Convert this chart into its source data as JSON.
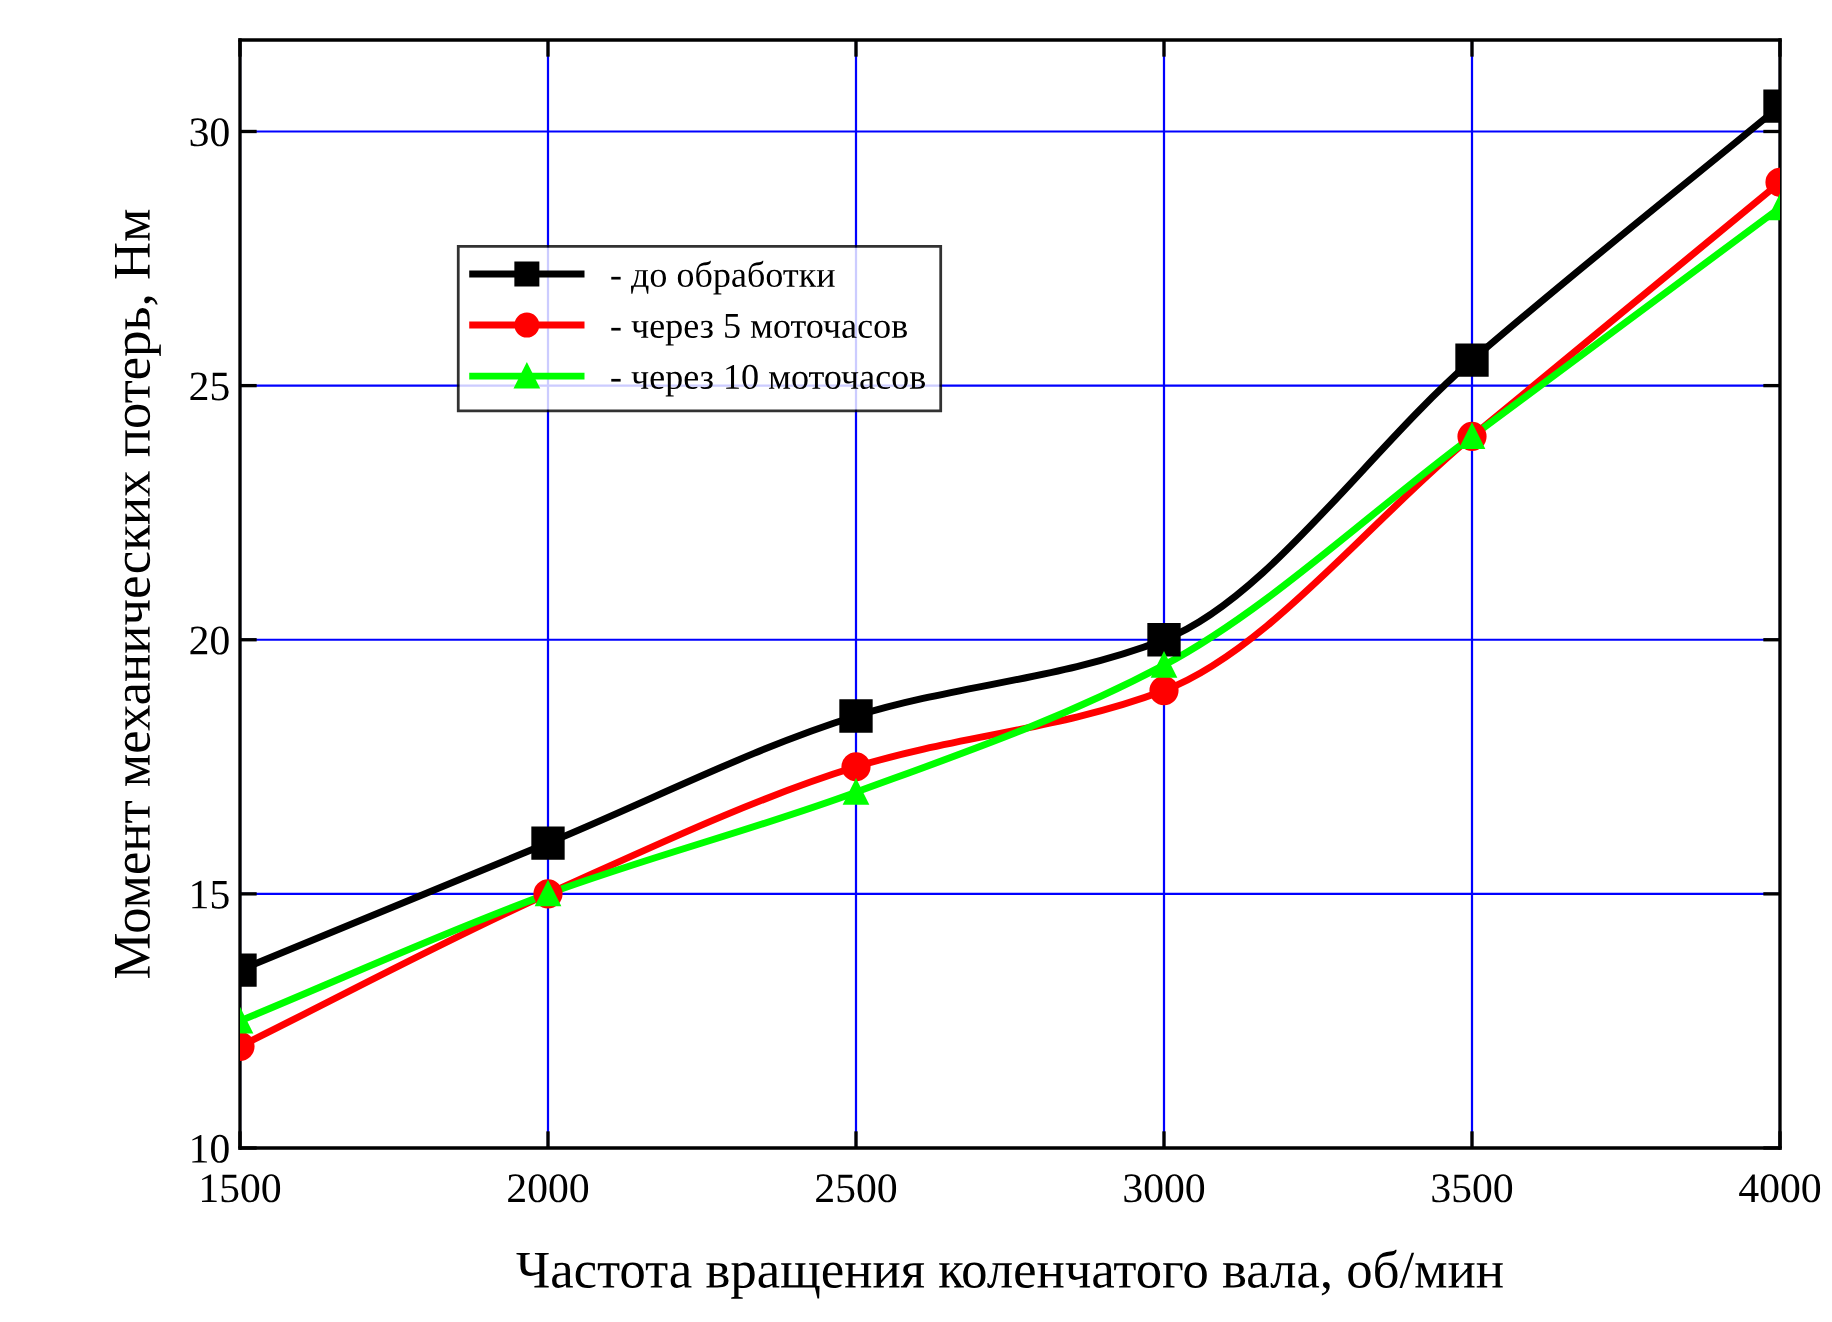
{
  "chart_data": {
    "type": "line",
    "xlabel": "Частота вращения коленчатого вала, об/мин",
    "ylabel": "Момент механических потерь, Нм",
    "x": [
      1500,
      2000,
      2500,
      3000,
      3500,
      4000
    ],
    "series": [
      {
        "name": "- до обработки",
        "color": "#000000",
        "marker": "square",
        "values": [
          13.5,
          16,
          18.5,
          20,
          25.5,
          30.5
        ]
      },
      {
        "name": "- через 5 моточасов",
        "color": "#ff0000",
        "marker": "circle",
        "values": [
          12,
          15,
          17.5,
          19,
          24,
          29
        ]
      },
      {
        "name": "- через 10 моточасов",
        "color": "#00ff00",
        "marker": "triangle",
        "values": [
          12.5,
          15,
          17,
          19.5,
          24,
          28.5
        ]
      }
    ],
    "xlim": [
      1500,
      4000
    ],
    "xticks": [
      1500,
      2000,
      2500,
      3000,
      3500,
      4000
    ],
    "ylim": [
      10,
      31.8
    ],
    "yticks": [
      10,
      15,
      20,
      25,
      30
    ],
    "grid": true,
    "legend": "top left",
    "line_style": "solid"
  }
}
